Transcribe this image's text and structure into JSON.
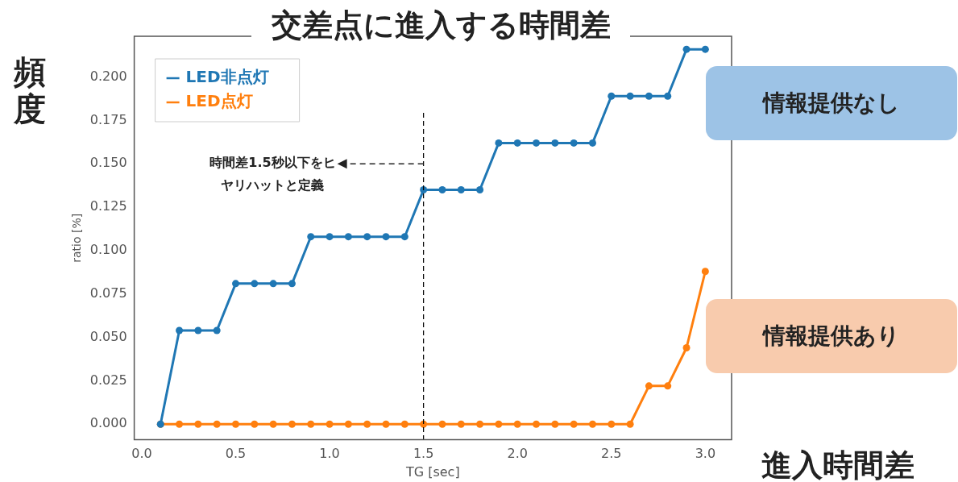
{
  "chart_data": {
    "type": "line",
    "title": "交差点に進入する時間差",
    "xlabel": "TG [sec]",
    "ylabel": "ratio [%]",
    "x": [
      0.1,
      0.2,
      0.3,
      0.4,
      0.5,
      0.6,
      0.7,
      0.8,
      0.9,
      1.0,
      1.1,
      1.2,
      1.3,
      1.4,
      1.5,
      1.6,
      1.7,
      1.8,
      1.9,
      2.0,
      2.1,
      2.2,
      2.3,
      2.4,
      2.5,
      2.6,
      2.7,
      2.8,
      2.9,
      3.0
    ],
    "series": [
      {
        "name": "LED非点灯",
        "color": "#1f77b4",
        "values": [
          0,
          0.054,
          0.054,
          0.054,
          0.081,
          0.081,
          0.081,
          0.081,
          0.108,
          0.108,
          0.108,
          0.108,
          0.108,
          0.108,
          0.135,
          0.135,
          0.135,
          0.135,
          0.162,
          0.162,
          0.162,
          0.162,
          0.162,
          0.162,
          0.189,
          0.189,
          0.189,
          0.189,
          0.216,
          0.216
        ]
      },
      {
        "name": "LED点灯",
        "color": "#ff7f0e",
        "values": [
          0,
          0,
          0,
          0,
          0,
          0,
          0,
          0,
          0,
          0,
          0,
          0,
          0,
          0,
          0,
          0,
          0,
          0,
          0,
          0,
          0,
          0,
          0,
          0,
          0,
          0,
          0.022,
          0.022,
          0.044,
          0.088
        ]
      }
    ],
    "xlim": [
      -0.04,
      3.14
    ],
    "xticks": [
      {
        "value": 0,
        "label": "0.0"
      },
      0.5,
      {
        "value": 1,
        "label": "1.0"
      },
      1.5,
      {
        "value": 2,
        "label": "2.0"
      },
      2.5,
      {
        "value": 3,
        "label": "3.0"
      }
    ],
    "ylim": [
      -0.009,
      0.2235
    ],
    "yticks": [
      {
        "value": 0,
        "label": "0.000"
      },
      0.025,
      {
        "value": 0.05,
        "label": "0.050"
      },
      0.075,
      {
        "value": 0.1,
        "label": "0.100"
      },
      0.125,
      {
        "value": 0.15,
        "label": "0.150"
      },
      0.175,
      {
        "value": 0.2,
        "label": "0.200"
      }
    ],
    "ref_lines": [
      {
        "axis": "x",
        "value": 1.5,
        "color": "#000000",
        "line_style": "dashed"
      }
    ],
    "annotations": [
      "頻度",
      "進入時間差",
      "情報提供なし",
      "情報提供あり",
      {
        "text": "時間差1.5秒以下をヒヤリハットと定義",
        "x": 1.5,
        "y": 0.15
      }
    ],
    "legend": "top left",
    "marker": "circle",
    "line_style": "solid",
    "grid": false
  }
}
